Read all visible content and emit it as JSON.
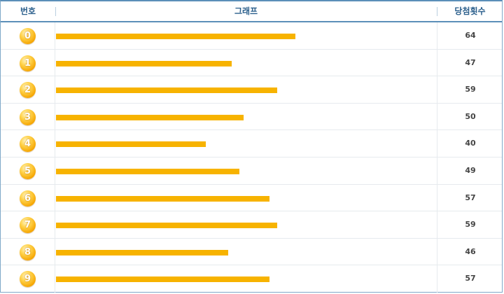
{
  "header": {
    "number_label": "번호",
    "graph_label": "그래프",
    "count_label": "당첨횟수"
  },
  "colors": {
    "bar": "#f7b300",
    "ball": "#f5a400",
    "header_text": "#2b5f8c",
    "border": "#5b8fb9"
  },
  "chart_data": {
    "type": "bar",
    "orientation": "horizontal",
    "categories": [
      "0",
      "1",
      "2",
      "3",
      "4",
      "5",
      "6",
      "7",
      "8",
      "9"
    ],
    "values": [
      64,
      47,
      59,
      50,
      40,
      49,
      57,
      59,
      46,
      57
    ],
    "xlim": [
      0,
      100
    ],
    "grid": false,
    "legend": "none"
  }
}
